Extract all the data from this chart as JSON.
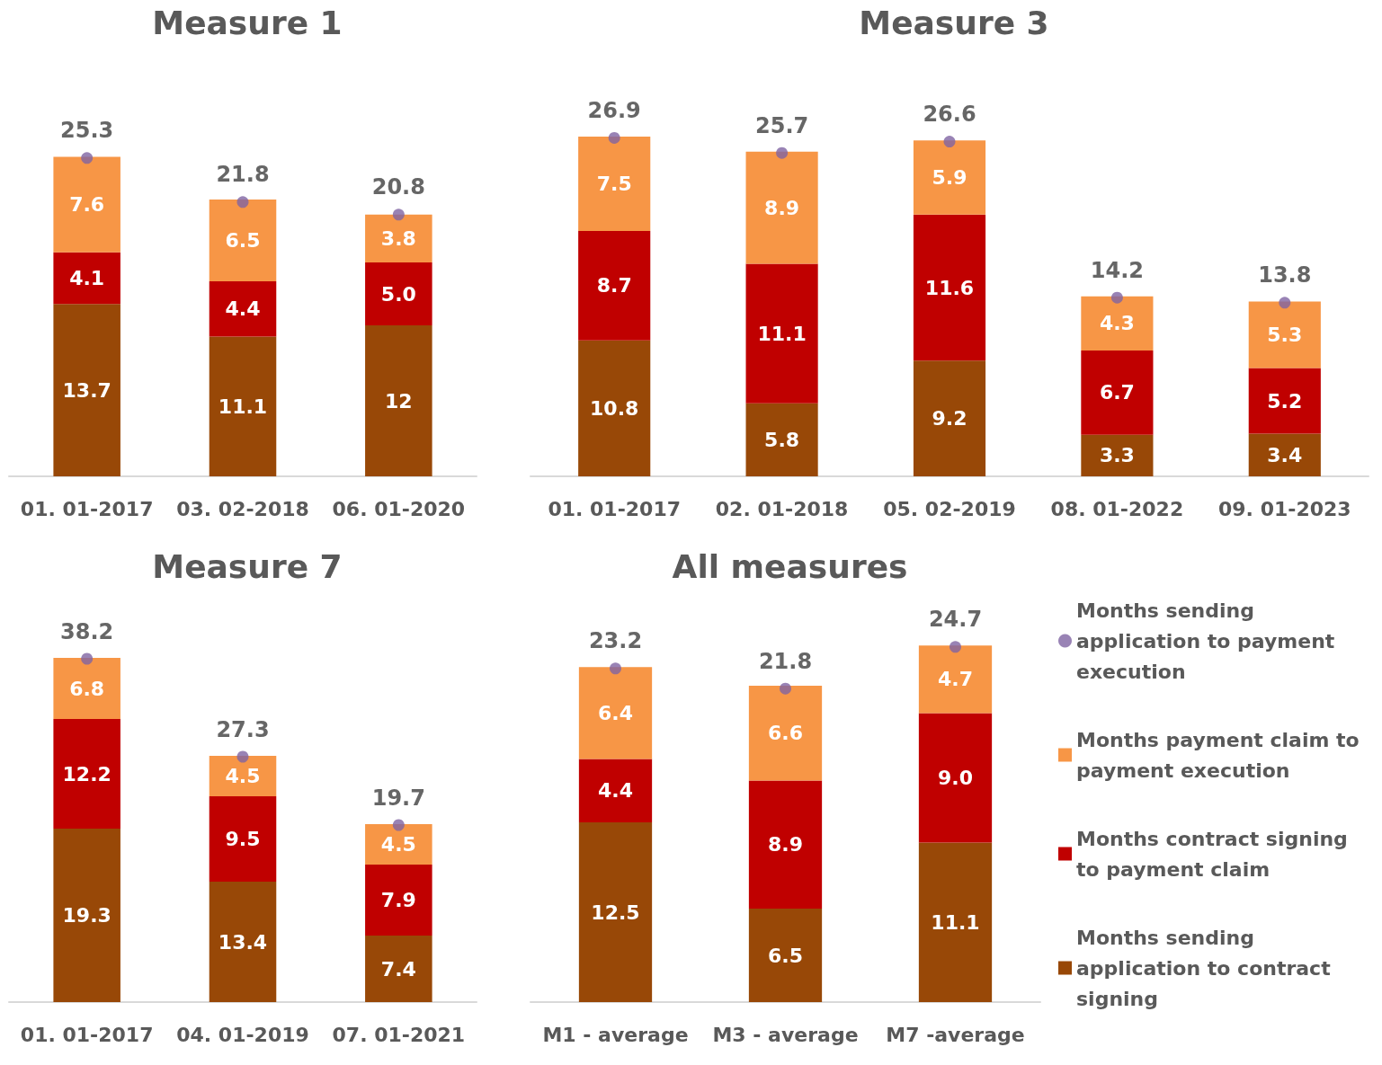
{
  "chart_data": [
    {
      "type": "bar",
      "title": "Measure 1",
      "stacked": true,
      "legend": false,
      "marker": "circle",
      "categories": [
        "01. 01-2017",
        "03. 02-2018",
        "06. 01-2020"
      ],
      "series": [
        {
          "color": "#984807",
          "values": [
            13.7,
            11.1,
            12
          ],
          "value_labels": [
            "13.7",
            "11.1",
            "12"
          ]
        },
        {
          "color": "#c00000",
          "values": [
            4.1,
            4.4,
            5.0
          ],
          "value_labels": [
            "4.1",
            "4.4",
            "5.0"
          ]
        },
        {
          "color": "#f79646",
          "values": [
            7.6,
            6.5,
            3.8
          ],
          "value_labels": [
            "7.6",
            "6.5",
            "3.8"
          ]
        },
        {
          "type": "scatter",
          "color": "#8064a2",
          "values": [
            25.3,
            21.8,
            20.8
          ],
          "value_labels": [
            "25.3",
            "21.8",
            "20.8"
          ]
        }
      ]
    },
    {
      "type": "bar",
      "title": "Measure 3",
      "stacked": true,
      "legend": false,
      "marker": "circle",
      "categories": [
        "01. 01-2017",
        "02. 01-2018",
        "05. 02-2019",
        "08. 01-2022",
        "09. 01-2023"
      ],
      "series": [
        {
          "color": "#984807",
          "values": [
            10.8,
            5.8,
            9.2,
            3.3,
            3.4
          ],
          "value_labels": [
            "10.8",
            "5.8",
            "9.2",
            "3.3",
            "3.4"
          ]
        },
        {
          "color": "#c00000",
          "values": [
            8.7,
            11.1,
            11.6,
            6.7,
            5.2
          ],
          "value_labels": [
            "8.7",
            "11.1",
            "11.6",
            "6.7",
            "5.2"
          ]
        },
        {
          "color": "#f79646",
          "values": [
            7.5,
            8.9,
            5.9,
            4.3,
            5.3
          ],
          "value_labels": [
            "7.5",
            "8.9",
            "5.9",
            "4.3",
            "5.3"
          ]
        },
        {
          "type": "scatter",
          "color": "#8064a2",
          "values": [
            26.9,
            25.7,
            26.6,
            14.2,
            13.8
          ],
          "value_labels": [
            "26.9",
            "25.7",
            "26.6",
            "14.2",
            "13.8"
          ]
        }
      ]
    },
    {
      "type": "bar",
      "title": "Measure 7",
      "stacked": true,
      "legend": false,
      "marker": "circle",
      "categories": [
        "01. 01-2017",
        "04. 01-2019",
        "07. 01-2021"
      ],
      "series": [
        {
          "color": "#984807",
          "values": [
            19.3,
            13.4,
            7.4
          ],
          "value_labels": [
            "19.3",
            "13.4",
            "7.4"
          ]
        },
        {
          "color": "#c00000",
          "values": [
            12.2,
            9.5,
            7.9
          ],
          "value_labels": [
            "12.2",
            "9.5",
            "7.9"
          ]
        },
        {
          "color": "#f79646",
          "values": [
            6.8,
            4.5,
            4.5
          ],
          "value_labels": [
            "6.8",
            "4.5",
            "4.5"
          ]
        },
        {
          "type": "scatter",
          "color": "#8064a2",
          "values": [
            38.2,
            27.3,
            19.7
          ],
          "value_labels": [
            "38.2",
            "27.3",
            "19.7"
          ]
        }
      ]
    },
    {
      "type": "bar",
      "title": "All measures",
      "stacked": true,
      "legend": "right",
      "marker": "circle",
      "categories": [
        "M1 - average",
        "M3 - average",
        "M7 -average"
      ],
      "series": [
        {
          "name": "Months sending application to contract signing",
          "color": "#984807",
          "values": [
            12.5,
            6.5,
            11.1
          ],
          "value_labels": [
            "12.5",
            "6.5",
            "11.1"
          ]
        },
        {
          "name": "Months contract signing to payment claim",
          "color": "#c00000",
          "values": [
            4.4,
            8.9,
            9.0
          ],
          "value_labels": [
            "4.4",
            "8.9",
            "9.0"
          ]
        },
        {
          "name": "Months payment claim to payment execution",
          "color": "#f79646",
          "values": [
            6.4,
            6.6,
            4.7
          ],
          "value_labels": [
            "6.4",
            "6.6",
            "4.7"
          ]
        },
        {
          "type": "scatter",
          "name": "Months sending application to payment execution",
          "color": "#8064a2",
          "values": [
            23.2,
            21.8,
            24.7
          ],
          "value_labels": [
            "23.2",
            "21.8",
            "24.7"
          ]
        }
      ]
    }
  ]
}
